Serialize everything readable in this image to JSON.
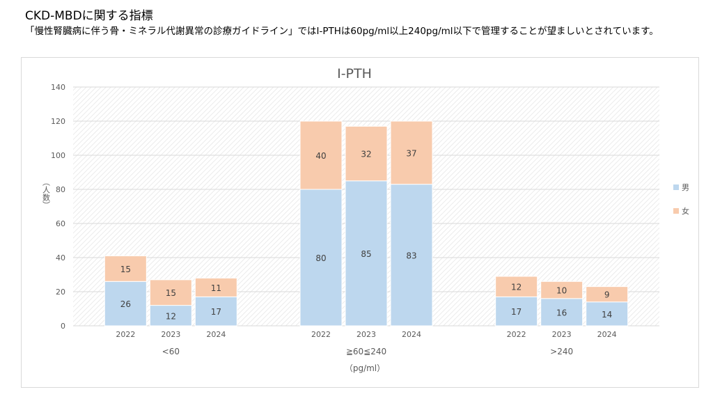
{
  "page": {
    "heading": "CKD-MBDに関する指標",
    "description": "「慢性腎臓病に伴う骨・ミネラル代謝異常の診療ガイドライン」ではI-PTHは60pg/ml以上240pg/ml以下で管理することが望ましいとされています。"
  },
  "chart_data": {
    "type": "bar",
    "stacked": true,
    "title": "I-PTH",
    "ylabel": "（人数）",
    "xlabel": "（pg/ml）",
    "ylim": [
      0,
      140
    ],
    "yticks": [
      0,
      20,
      40,
      60,
      80,
      100,
      120,
      140
    ],
    "groups": [
      "<60",
      "≧60≦240",
      ">240"
    ],
    "categories": [
      "2022",
      "2023",
      "2024"
    ],
    "series": [
      {
        "name": "男",
        "color": "#bdd7ee",
        "values": [
          [
            26,
            12,
            17
          ],
          [
            80,
            85,
            83
          ],
          [
            17,
            16,
            14
          ]
        ]
      },
      {
        "name": "女",
        "color": "#f8cbad",
        "values": [
          [
            15,
            15,
            11
          ],
          [
            40,
            32,
            37
          ],
          [
            12,
            10,
            9
          ]
        ]
      }
    ],
    "grid": true,
    "legend": "right"
  }
}
